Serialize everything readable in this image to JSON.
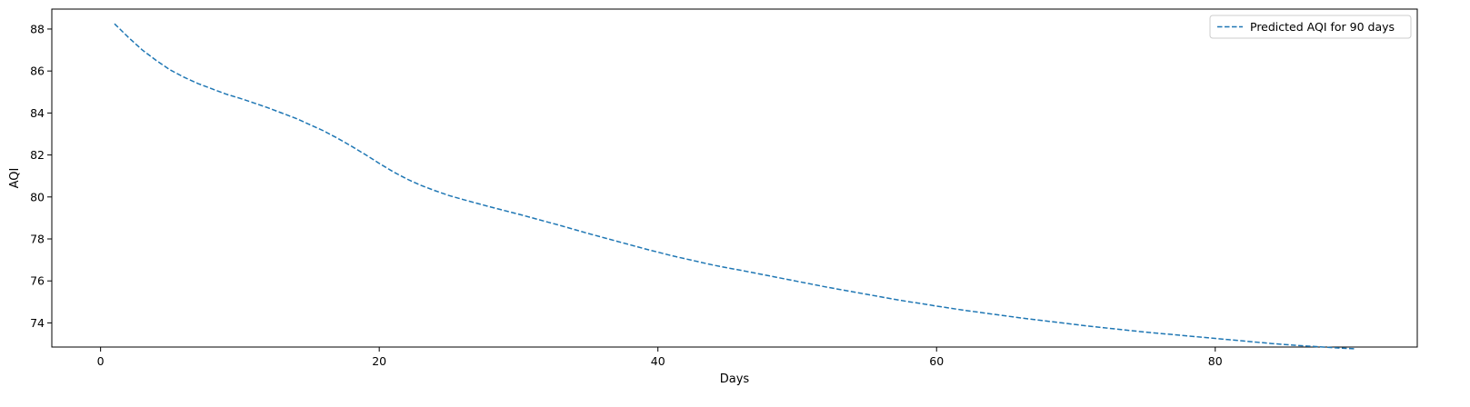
{
  "chart_data": {
    "type": "line",
    "title": "",
    "xlabel": "Days",
    "ylabel": "AQI",
    "xlim": [
      -3.5,
      94.5
    ],
    "ylim": [
      72.85,
      88.95
    ],
    "xticks": [
      0,
      20,
      40,
      60,
      80
    ],
    "yticks": [
      74,
      76,
      78,
      80,
      82,
      84,
      86,
      88
    ],
    "grid": false,
    "legend_position": "top-right",
    "series": [
      {
        "name": "Predicted AQI for 90 days",
        "color": "#1f77b4",
        "line_style": "dashed",
        "x": [
          1,
          2,
          3,
          4,
          5,
          6,
          7,
          8,
          9,
          10,
          11,
          12,
          13,
          14,
          15,
          16,
          17,
          18,
          19,
          20,
          21,
          22,
          23,
          24,
          25,
          26,
          27,
          28,
          29,
          30,
          31,
          32,
          33,
          34,
          35,
          36,
          37,
          38,
          39,
          40,
          41,
          42,
          43,
          44,
          45,
          46,
          47,
          48,
          49,
          50,
          51,
          52,
          53,
          54,
          55,
          56,
          57,
          58,
          59,
          60,
          61,
          62,
          63,
          64,
          65,
          66,
          67,
          68,
          69,
          70,
          71,
          72,
          73,
          74,
          75,
          76,
          77,
          78,
          79,
          80,
          81,
          82,
          83,
          84,
          85,
          86,
          87,
          88,
          89,
          90
        ],
        "values": [
          88.25,
          87.6,
          87.0,
          86.5,
          86.05,
          85.7,
          85.4,
          85.15,
          84.9,
          84.7,
          84.48,
          84.25,
          84.0,
          83.75,
          83.45,
          83.15,
          82.8,
          82.42,
          82.02,
          81.6,
          81.2,
          80.85,
          80.55,
          80.3,
          80.07,
          79.88,
          79.7,
          79.52,
          79.35,
          79.18,
          79.0,
          78.82,
          78.64,
          78.45,
          78.26,
          78.08,
          77.9,
          77.72,
          77.54,
          77.37,
          77.2,
          77.05,
          76.9,
          76.75,
          76.62,
          76.5,
          76.37,
          76.24,
          76.11,
          75.98,
          75.85,
          75.72,
          75.6,
          75.48,
          75.36,
          75.24,
          75.12,
          75.01,
          74.91,
          74.8,
          74.7,
          74.6,
          74.51,
          74.42,
          74.33,
          74.24,
          74.16,
          74.08,
          74.0,
          73.92,
          73.84,
          73.77,
          73.7,
          73.63,
          73.56,
          73.5,
          73.44,
          73.38,
          73.32,
          73.26,
          73.2,
          73.14,
          73.08,
          73.02,
          72.97,
          72.92,
          72.88,
          72.84,
          72.8,
          72.77
        ]
      }
    ]
  }
}
